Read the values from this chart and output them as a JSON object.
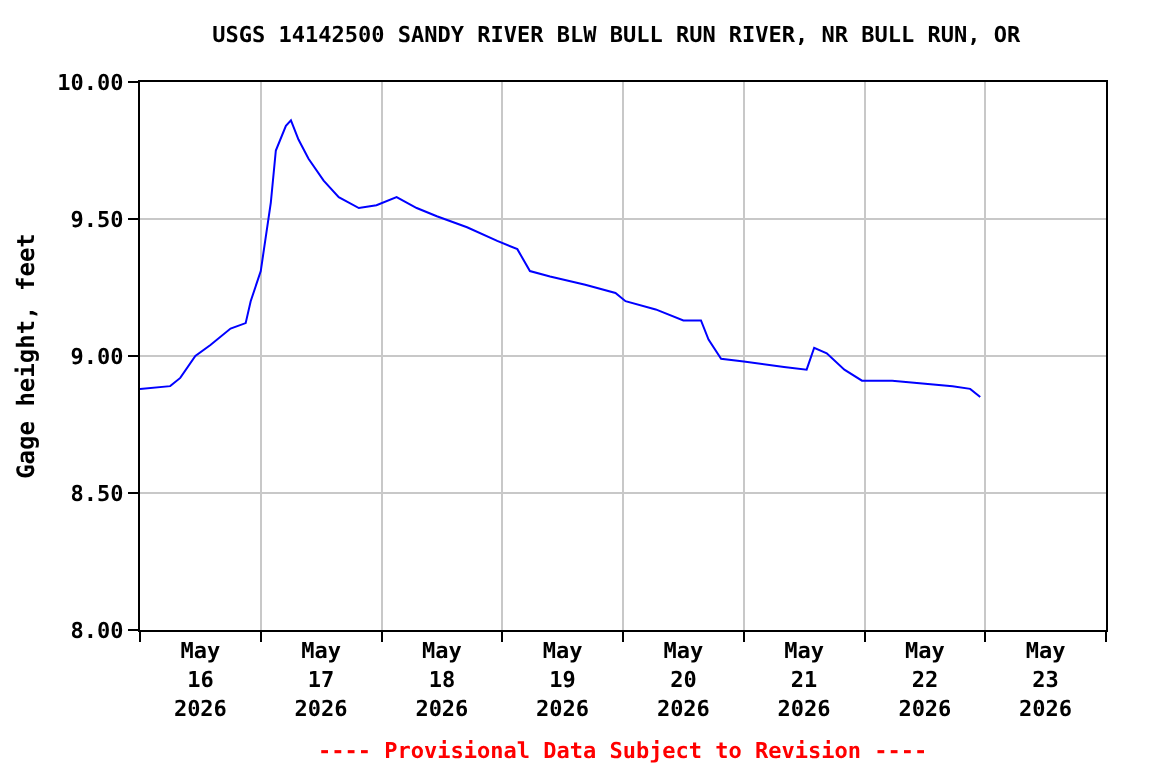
{
  "chart_data": {
    "type": "line",
    "title": "USGS 14142500 SANDY RIVER BLW BULL RUN RIVER, NR BULL RUN, OR",
    "ylabel": "Gage height, feet",
    "annotations": [
      "---- Provisional Data Subject to Revision ----"
    ],
    "x": [
      "2026-05-16T00:00",
      "2026-05-16T06:00",
      "2026-05-16T08:00",
      "2026-05-16T11:00",
      "2026-05-16T14:00",
      "2026-05-16T18:00",
      "2026-05-16T21:00",
      "2026-05-16T22:00",
      "2026-05-17T00:00",
      "2026-05-17T02:00",
      "2026-05-17T03:00",
      "2026-05-17T05:00",
      "2026-05-17T06:00",
      "2026-05-17T07:30",
      "2026-05-17T09:30",
      "2026-05-17T12:30",
      "2026-05-17T15:30",
      "2026-05-17T19:30",
      "2026-05-17T23:00",
      "2026-05-18T03:00",
      "2026-05-18T07:00",
      "2026-05-18T11:00",
      "2026-05-18T17:00",
      "2026-05-18T23:00",
      "2026-05-19T03:00",
      "2026-05-19T05:30",
      "2026-05-19T09:30",
      "2026-05-19T16:30",
      "2026-05-19T22:30",
      "2026-05-20T00:30",
      "2026-05-20T06:30",
      "2026-05-20T12:00",
      "2026-05-20T15:30",
      "2026-05-20T17:00",
      "2026-05-20T19:30",
      "2026-05-21T00:00",
      "2026-05-21T08:00",
      "2026-05-21T12:30",
      "2026-05-21T14:00",
      "2026-05-21T16:30",
      "2026-05-21T20:00",
      "2026-05-21T23:30",
      "2026-05-22T05:30",
      "2026-05-22T11:30",
      "2026-05-22T17:30",
      "2026-05-22T21:00",
      "2026-05-22T23:00"
    ],
    "series": [
      {
        "color": "#0000ff",
        "values": [
          8.88,
          8.89,
          8.92,
          9.0,
          9.04,
          9.1,
          9.12,
          9.2,
          9.31,
          9.56,
          9.75,
          9.84,
          9.86,
          9.79,
          9.72,
          9.64,
          9.58,
          9.54,
          9.55,
          9.58,
          9.54,
          9.51,
          9.47,
          9.42,
          9.39,
          9.31,
          9.29,
          9.26,
          9.23,
          9.2,
          9.17,
          9.13,
          9.13,
          9.06,
          8.99,
          8.98,
          8.96,
          8.95,
          9.03,
          9.01,
          8.95,
          8.91,
          8.91,
          8.9,
          8.89,
          8.88,
          8.85
        ]
      }
    ],
    "xlim": [
      "2026-05-16T00:00",
      "2026-05-24T00:00"
    ],
    "xticks": [
      {
        "value": "2026-05-16T12:00",
        "label": "May\n16\n2026"
      },
      {
        "value": "2026-05-17T12:00",
        "label": "May\n17\n2026"
      },
      {
        "value": "2026-05-18T12:00",
        "label": "May\n18\n2026"
      },
      {
        "value": "2026-05-19T12:00",
        "label": "May\n19\n2026"
      },
      {
        "value": "2026-05-20T12:00",
        "label": "May\n20\n2026"
      },
      {
        "value": "2026-05-21T12:00",
        "label": "May\n21\n2026"
      },
      {
        "value": "2026-05-22T12:00",
        "label": "May\n22\n2026"
      },
      {
        "value": "2026-05-23T12:00",
        "label": "May\n23\n2026"
      }
    ],
    "ylim": [
      8.0,
      10.0
    ],
    "yticks": [
      {
        "value": 8.0,
        "label": "8.00"
      },
      {
        "value": 8.5,
        "label": "8.50"
      },
      {
        "value": 9.0,
        "label": "9.00"
      },
      {
        "value": 9.5,
        "label": "9.50"
      },
      {
        "value": 10.0,
        "label": "10.00"
      }
    ],
    "grid": true,
    "marker": "none",
    "line_style": "solid"
  }
}
